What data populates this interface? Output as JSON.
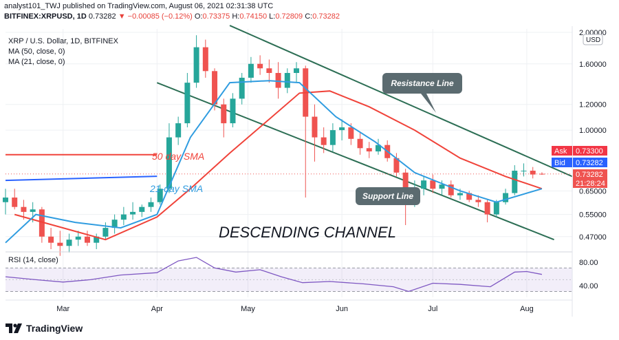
{
  "header": {
    "line1": "analyst101_TWJ published on TradingView.com, August 06, 2021 02:31:38 UTC",
    "symbol": "BITFINEX:XRPUSD, 1D",
    "price": "0.73282",
    "change": "−0.00085 (−0.12%)",
    "o_label": "O:",
    "o": "0.73375",
    "h_label": "H:",
    "h": "0.74150",
    "l_label": "L:",
    "l": "0.72809",
    "c_label": "C:",
    "c": "0.73282"
  },
  "legend": {
    "title": "XRP / U.S. Dollar, 1D, BITFINEX",
    "ma50": "MA (50, close, 0)",
    "ma21": "MA (21, close, 0)",
    "rsi": "RSI (14, close)"
  },
  "annotations": {
    "resistance": "Resistance Line",
    "support": "Support Line",
    "channel": "DESCENDING CHANNEL",
    "sma50": "50 day SMA",
    "sma21": "21-day SMA"
  },
  "quote": {
    "ask_label": "Ask",
    "ask": "0.73300",
    "bid_label": "Bid",
    "bid": "0.73282",
    "last": "0.73282",
    "countdown": "21:28:24"
  },
  "footer": {
    "brand": "TradingView"
  },
  "colors": {
    "up": "#26a69a",
    "down": "#ef5350",
    "ma50": "#f0433a",
    "ma21": "#2f9ce0",
    "channel": "#2c6e54",
    "rsi": "#7e57c2",
    "ask": "#f23645",
    "bid": "#2962ff"
  },
  "chart_data": [
    {
      "type": "candlestick",
      "title": "XRP / U.S. Dollar, 1D, BITFINEX",
      "y_scale": "log",
      "y_ticks": [
        "2.00000",
        "1.60000",
        "1.20000",
        "1.00000",
        "0.65000",
        "0.55000",
        "0.47000"
      ],
      "y_unit": "USD",
      "x_ticks": [
        "Mar",
        "Apr",
        "May",
        "Jun",
        "Jul",
        "Aug"
      ],
      "x_range": [
        "2021-02-10",
        "2021-08-16"
      ],
      "ylim": [
        0.43,
        2.05
      ],
      "candles": [
        {
          "t": "2021-02-10",
          "o": 0.6,
          "h": 0.66,
          "l": 0.55,
          "c": 0.62
        },
        {
          "t": "2021-02-13",
          "o": 0.62,
          "h": 0.66,
          "l": 0.57,
          "c": 0.58
        },
        {
          "t": "2021-02-16",
          "o": 0.58,
          "h": 0.61,
          "l": 0.53,
          "c": 0.56
        },
        {
          "t": "2021-02-19",
          "o": 0.56,
          "h": 0.6,
          "l": 0.52,
          "c": 0.57
        },
        {
          "t": "2021-02-22",
          "o": 0.57,
          "h": 0.58,
          "l": 0.45,
          "c": 0.47
        },
        {
          "t": "2021-02-25",
          "o": 0.47,
          "h": 0.5,
          "l": 0.43,
          "c": 0.45
        },
        {
          "t": "2021-02-28",
          "o": 0.45,
          "h": 0.49,
          "l": 0.41,
          "c": 0.44
        },
        {
          "t": "2021-03-03",
          "o": 0.44,
          "h": 0.48,
          "l": 0.42,
          "c": 0.46
        },
        {
          "t": "2021-03-06",
          "o": 0.46,
          "h": 0.49,
          "l": 0.44,
          "c": 0.47
        },
        {
          "t": "2021-03-09",
          "o": 0.47,
          "h": 0.49,
          "l": 0.44,
          "c": 0.45
        },
        {
          "t": "2021-03-12",
          "o": 0.45,
          "h": 0.48,
          "l": 0.43,
          "c": 0.47
        },
        {
          "t": "2021-03-15",
          "o": 0.47,
          "h": 0.52,
          "l": 0.46,
          "c": 0.5
        },
        {
          "t": "2021-03-18",
          "o": 0.5,
          "h": 0.55,
          "l": 0.48,
          "c": 0.53
        },
        {
          "t": "2021-03-21",
          "o": 0.53,
          "h": 0.58,
          "l": 0.51,
          "c": 0.55
        },
        {
          "t": "2021-03-24",
          "o": 0.55,
          "h": 0.6,
          "l": 0.53,
          "c": 0.56
        },
        {
          "t": "2021-03-27",
          "o": 0.56,
          "h": 0.59,
          "l": 0.54,
          "c": 0.58
        },
        {
          "t": "2021-03-30",
          "o": 0.58,
          "h": 0.62,
          "l": 0.56,
          "c": 0.6
        },
        {
          "t": "2021-04-02",
          "o": 0.6,
          "h": 0.68,
          "l": 0.59,
          "c": 0.66
        },
        {
          "t": "2021-04-05",
          "o": 0.66,
          "h": 1.05,
          "l": 0.64,
          "c": 0.95
        },
        {
          "t": "2021-04-08",
          "o": 0.95,
          "h": 1.1,
          "l": 0.9,
          "c": 1.05
        },
        {
          "t": "2021-04-11",
          "o": 1.05,
          "h": 1.5,
          "l": 1.02,
          "c": 1.4
        },
        {
          "t": "2021-04-14",
          "o": 1.4,
          "h": 1.96,
          "l": 1.35,
          "c": 1.8
        },
        {
          "t": "2021-04-17",
          "o": 1.8,
          "h": 1.9,
          "l": 1.45,
          "c": 1.52
        },
        {
          "t": "2021-04-20",
          "o": 1.52,
          "h": 1.55,
          "l": 1.15,
          "c": 1.2
        },
        {
          "t": "2021-04-23",
          "o": 1.2,
          "h": 1.25,
          "l": 0.95,
          "c": 1.05
        },
        {
          "t": "2021-04-26",
          "o": 1.05,
          "h": 1.3,
          "l": 1.02,
          "c": 1.25
        },
        {
          "t": "2021-04-29",
          "o": 1.25,
          "h": 1.5,
          "l": 1.2,
          "c": 1.45
        },
        {
          "t": "2021-05-02",
          "o": 1.45,
          "h": 1.68,
          "l": 1.4,
          "c": 1.6
        },
        {
          "t": "2021-05-05",
          "o": 1.6,
          "h": 1.7,
          "l": 1.48,
          "c": 1.55
        },
        {
          "t": "2021-05-08",
          "o": 1.55,
          "h": 1.65,
          "l": 1.4,
          "c": 1.5
        },
        {
          "t": "2021-05-11",
          "o": 1.5,
          "h": 1.62,
          "l": 1.25,
          "c": 1.35
        },
        {
          "t": "2021-05-14",
          "o": 1.35,
          "h": 1.55,
          "l": 1.3,
          "c": 1.5
        },
        {
          "t": "2021-05-17",
          "o": 1.5,
          "h": 1.62,
          "l": 1.4,
          "c": 1.55
        },
        {
          "t": "2021-05-20",
          "o": 1.55,
          "h": 1.58,
          "l": 0.62,
          "c": 1.1
        },
        {
          "t": "2021-05-23",
          "o": 1.1,
          "h": 1.2,
          "l": 0.8,
          "c": 0.95
        },
        {
          "t": "2021-05-26",
          "o": 0.95,
          "h": 1.02,
          "l": 0.85,
          "c": 0.9
        },
        {
          "t": "2021-05-29",
          "o": 0.9,
          "h": 1.05,
          "l": 0.86,
          "c": 1.0
        },
        {
          "t": "2021-06-01",
          "o": 1.0,
          "h": 1.08,
          "l": 0.93,
          "c": 1.02
        },
        {
          "t": "2021-06-04",
          "o": 1.02,
          "h": 1.05,
          "l": 0.9,
          "c": 0.94
        },
        {
          "t": "2021-06-07",
          "o": 0.94,
          "h": 0.98,
          "l": 0.84,
          "c": 0.88
        },
        {
          "t": "2021-06-10",
          "o": 0.88,
          "h": 0.92,
          "l": 0.82,
          "c": 0.86
        },
        {
          "t": "2021-06-13",
          "o": 0.86,
          "h": 0.94,
          "l": 0.84,
          "c": 0.9
        },
        {
          "t": "2021-06-16",
          "o": 0.9,
          "h": 0.93,
          "l": 0.8,
          "c": 0.82
        },
        {
          "t": "2021-06-19",
          "o": 0.82,
          "h": 0.85,
          "l": 0.72,
          "c": 0.74
        },
        {
          "t": "2021-06-22",
          "o": 0.74,
          "h": 0.76,
          "l": 0.51,
          "c": 0.6
        },
        {
          "t": "2021-06-25",
          "o": 0.6,
          "h": 0.7,
          "l": 0.58,
          "c": 0.66
        },
        {
          "t": "2021-06-28",
          "o": 0.66,
          "h": 0.72,
          "l": 0.63,
          "c": 0.7
        },
        {
          "t": "2021-07-01",
          "o": 0.7,
          "h": 0.73,
          "l": 0.64,
          "c": 0.66
        },
        {
          "t": "2021-07-04",
          "o": 0.66,
          "h": 0.7,
          "l": 0.63,
          "c": 0.68
        },
        {
          "t": "2021-07-07",
          "o": 0.68,
          "h": 0.7,
          "l": 0.62,
          "c": 0.63
        },
        {
          "t": "2021-07-10",
          "o": 0.63,
          "h": 0.66,
          "l": 0.61,
          "c": 0.64
        },
        {
          "t": "2021-07-13",
          "o": 0.64,
          "h": 0.65,
          "l": 0.6,
          "c": 0.61
        },
        {
          "t": "2021-07-16",
          "o": 0.61,
          "h": 0.63,
          "l": 0.58,
          "c": 0.6
        },
        {
          "t": "2021-07-19",
          "o": 0.6,
          "h": 0.61,
          "l": 0.52,
          "c": 0.55
        },
        {
          "t": "2021-07-22",
          "o": 0.55,
          "h": 0.61,
          "l": 0.54,
          "c": 0.6
        },
        {
          "t": "2021-07-25",
          "o": 0.6,
          "h": 0.66,
          "l": 0.59,
          "c": 0.64
        },
        {
          "t": "2021-07-28",
          "o": 0.64,
          "h": 0.78,
          "l": 0.63,
          "c": 0.75
        },
        {
          "t": "2021-07-31",
          "o": 0.75,
          "h": 0.79,
          "l": 0.72,
          "c": 0.75
        },
        {
          "t": "2021-08-03",
          "o": 0.75,
          "h": 0.77,
          "l": 0.71,
          "c": 0.73
        },
        {
          "t": "2021-08-06",
          "o": 0.73375,
          "h": 0.7415,
          "l": 0.72809,
          "c": 0.73282
        }
      ],
      "ma50": [
        {
          "t": "2021-02-13",
          "v": 0.55
        },
        {
          "t": "2021-03-01",
          "v": 0.5
        },
        {
          "t": "2021-03-15",
          "v": 0.46
        },
        {
          "t": "2021-04-01",
          "v": 0.54
        },
        {
          "t": "2021-04-12",
          "v": 0.66
        },
        {
          "t": "2021-04-25",
          "v": 0.85
        },
        {
          "t": "2021-05-08",
          "v": 1.08
        },
        {
          "t": "2021-05-18",
          "v": 1.3
        },
        {
          "t": "2021-05-28",
          "v": 1.32
        },
        {
          "t": "2021-06-10",
          "v": 1.18
        },
        {
          "t": "2021-06-25",
          "v": 1.0
        },
        {
          "t": "2021-07-10",
          "v": 0.82
        },
        {
          "t": "2021-07-25",
          "v": 0.72
        },
        {
          "t": "2021-08-06",
          "v": 0.66
        }
      ],
      "ma21": [
        {
          "t": "2021-02-10",
          "v": 0.45
        },
        {
          "t": "2021-02-20",
          "v": 0.55
        },
        {
          "t": "2021-03-05",
          "v": 0.52
        },
        {
          "t": "2021-03-20",
          "v": 0.5
        },
        {
          "t": "2021-04-01",
          "v": 0.55
        },
        {
          "t": "2021-04-12",
          "v": 0.95
        },
        {
          "t": "2021-04-25",
          "v": 1.4
        },
        {
          "t": "2021-05-08",
          "v": 1.42
        },
        {
          "t": "2021-05-18",
          "v": 1.4
        },
        {
          "t": "2021-05-30",
          "v": 1.1
        },
        {
          "t": "2021-06-12",
          "v": 0.92
        },
        {
          "t": "2021-06-25",
          "v": 0.74
        },
        {
          "t": "2021-07-10",
          "v": 0.65
        },
        {
          "t": "2021-07-22",
          "v": 0.6
        },
        {
          "t": "2021-08-06",
          "v": 0.66
        }
      ],
      "resistance_line": [
        {
          "t": "2021-04-25",
          "v": 2.1
        },
        {
          "t": "2021-08-16",
          "v": 0.72
        }
      ],
      "support_line": [
        {
          "t": "2021-04-01",
          "v": 1.4
        },
        {
          "t": "2021-08-10",
          "v": 0.46
        }
      ],
      "sma50_level": {
        "t0": "2021-02-10",
        "t1": "2021-04-01",
        "v": 0.84
      },
      "sma21_level": {
        "t0": "2021-02-10",
        "t1": "2021-04-01",
        "v": 0.7
      }
    },
    {
      "type": "line",
      "title": "RSI (14, close)",
      "y_ticks": [
        "80.00",
        "40.00"
      ],
      "ylim": [
        20,
        95
      ],
      "band": [
        30,
        70
      ],
      "values": [
        {
          "t": "2021-02-10",
          "v": 55
        },
        {
          "t": "2021-02-20",
          "v": 50
        },
        {
          "t": "2021-03-01",
          "v": 46
        },
        {
          "t": "2021-03-10",
          "v": 50
        },
        {
          "t": "2021-03-20",
          "v": 58
        },
        {
          "t": "2021-04-01",
          "v": 62
        },
        {
          "t": "2021-04-08",
          "v": 82
        },
        {
          "t": "2021-04-14",
          "v": 88
        },
        {
          "t": "2021-04-20",
          "v": 70
        },
        {
          "t": "2021-04-27",
          "v": 63
        },
        {
          "t": "2021-05-05",
          "v": 67
        },
        {
          "t": "2021-05-12",
          "v": 55
        },
        {
          "t": "2021-05-19",
          "v": 45
        },
        {
          "t": "2021-05-28",
          "v": 47
        },
        {
          "t": "2021-06-08",
          "v": 43
        },
        {
          "t": "2021-06-18",
          "v": 38
        },
        {
          "t": "2021-06-23",
          "v": 30
        },
        {
          "t": "2021-07-01",
          "v": 44
        },
        {
          "t": "2021-07-10",
          "v": 42
        },
        {
          "t": "2021-07-20",
          "v": 38
        },
        {
          "t": "2021-07-28",
          "v": 63
        },
        {
          "t": "2021-08-01",
          "v": 64
        },
        {
          "t": "2021-08-06",
          "v": 59
        }
      ]
    }
  ]
}
